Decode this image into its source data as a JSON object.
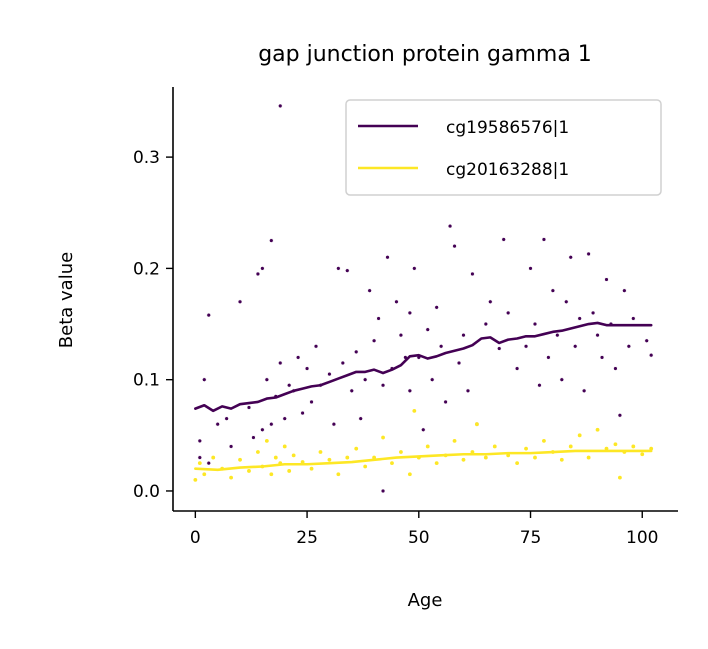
{
  "chart_data": {
    "type": "scatter",
    "title": "gap junction protein gamma 1",
    "xlabel": "Age",
    "ylabel": "Beta value",
    "xlim": [
      -5,
      108
    ],
    "ylim": [
      -0.018,
      0.363
    ],
    "xticks": [
      0,
      25,
      50,
      75,
      100
    ],
    "yticks": [
      0.0,
      0.1,
      0.2,
      0.3
    ],
    "xtick_labels": [
      "0",
      "25",
      "50",
      "75",
      "100"
    ],
    "ytick_labels": [
      "0.0",
      "0.1",
      "0.2",
      "0.3"
    ],
    "grid": false,
    "legend_position": "top-right",
    "series": [
      {
        "name": "cg19586576|1",
        "color": "#440154",
        "trend": {
          "x": [
            0,
            2,
            4,
            6,
            8,
            10,
            12,
            14,
            16,
            18,
            20,
            22,
            24,
            26,
            28,
            30,
            32,
            34,
            36,
            38,
            40,
            42,
            44,
            46,
            48,
            50,
            52,
            54,
            56,
            58,
            60,
            62,
            64,
            66,
            68,
            70,
            72,
            74,
            76,
            78,
            80,
            82,
            84,
            86,
            88,
            90,
            92,
            94,
            96,
            98,
            100,
            102
          ],
          "y": [
            0.074,
            0.077,
            0.072,
            0.076,
            0.074,
            0.078,
            0.079,
            0.08,
            0.083,
            0.084,
            0.087,
            0.09,
            0.092,
            0.094,
            0.095,
            0.098,
            0.101,
            0.104,
            0.107,
            0.107,
            0.109,
            0.106,
            0.109,
            0.113,
            0.121,
            0.122,
            0.119,
            0.121,
            0.124,
            0.126,
            0.128,
            0.131,
            0.137,
            0.138,
            0.133,
            0.136,
            0.137,
            0.139,
            0.139,
            0.141,
            0.143,
            0.144,
            0.146,
            0.148,
            0.15,
            0.151,
            0.149,
            0.149,
            0.149,
            0.149,
            0.149,
            0.149
          ]
        },
        "points": [
          [
            1,
            0.03
          ],
          [
            1,
            0.045
          ],
          [
            2,
            0.1
          ],
          [
            3,
            0.025
          ],
          [
            3,
            0.158
          ],
          [
            5,
            0.06
          ],
          [
            7,
            0.065
          ],
          [
            8,
            0.04
          ],
          [
            10,
            0.17
          ],
          [
            12,
            0.075
          ],
          [
            13,
            0.048
          ],
          [
            14,
            0.195
          ],
          [
            15,
            0.2
          ],
          [
            15,
            0.055
          ],
          [
            16,
            0.1
          ],
          [
            17,
            0.225
          ],
          [
            17,
            0.06
          ],
          [
            18,
            0.085
          ],
          [
            19,
            0.346
          ],
          [
            19,
            0.115
          ],
          [
            20,
            0.065
          ],
          [
            21,
            0.095
          ],
          [
            22,
            0.09
          ],
          [
            23,
            0.12
          ],
          [
            24,
            0.07
          ],
          [
            25,
            0.11
          ],
          [
            26,
            0.08
          ],
          [
            27,
            0.13
          ],
          [
            28,
            0.095
          ],
          [
            30,
            0.105
          ],
          [
            31,
            0.06
          ],
          [
            32,
            0.2
          ],
          [
            33,
            0.115
          ],
          [
            34,
            0.198
          ],
          [
            35,
            0.09
          ],
          [
            36,
            0.125
          ],
          [
            37,
            0.065
          ],
          [
            38,
            0.1
          ],
          [
            39,
            0.18
          ],
          [
            40,
            0.135
          ],
          [
            41,
            0.155
          ],
          [
            42,
            0.095
          ],
          [
            42,
            0.0
          ],
          [
            43,
            0.21
          ],
          [
            44,
            0.11
          ],
          [
            45,
            0.17
          ],
          [
            46,
            0.14
          ],
          [
            47,
            0.12
          ],
          [
            48,
            0.16
          ],
          [
            48,
            0.09
          ],
          [
            49,
            0.2
          ],
          [
            50,
            0.12
          ],
          [
            51,
            0.055
          ],
          [
            52,
            0.145
          ],
          [
            53,
            0.1
          ],
          [
            54,
            0.165
          ],
          [
            55,
            0.13
          ],
          [
            56,
            0.08
          ],
          [
            57,
            0.238
          ],
          [
            58,
            0.22
          ],
          [
            59,
            0.115
          ],
          [
            60,
            0.14
          ],
          [
            61,
            0.09
          ],
          [
            62,
            0.195
          ],
          [
            63,
            0.06
          ],
          [
            65,
            0.15
          ],
          [
            66,
            0.17
          ],
          [
            68,
            0.128
          ],
          [
            69,
            0.226
          ],
          [
            70,
            0.16
          ],
          [
            72,
            0.11
          ],
          [
            74,
            0.13
          ],
          [
            75,
            0.2
          ],
          [
            76,
            0.15
          ],
          [
            77,
            0.095
          ],
          [
            78,
            0.226
          ],
          [
            79,
            0.12
          ],
          [
            80,
            0.18
          ],
          [
            81,
            0.14
          ],
          [
            82,
            0.1
          ],
          [
            83,
            0.17
          ],
          [
            84,
            0.21
          ],
          [
            85,
            0.13
          ],
          [
            86,
            0.155
          ],
          [
            87,
            0.09
          ],
          [
            88,
            0.213
          ],
          [
            89,
            0.16
          ],
          [
            90,
            0.14
          ],
          [
            91,
            0.12
          ],
          [
            92,
            0.19
          ],
          [
            93,
            0.15
          ],
          [
            94,
            0.11
          ],
          [
            95,
            0.068
          ],
          [
            96,
            0.18
          ],
          [
            97,
            0.13
          ],
          [
            98,
            0.155
          ],
          [
            101,
            0.135
          ],
          [
            102,
            0.122
          ]
        ]
      },
      {
        "name": "cg20163288|1",
        "color": "#fde725",
        "trend": {
          "x": [
            0,
            5,
            10,
            15,
            20,
            25,
            30,
            35,
            40,
            45,
            50,
            55,
            60,
            65,
            70,
            75,
            80,
            85,
            90,
            95,
            100,
            102
          ],
          "y": [
            0.02,
            0.019,
            0.021,
            0.022,
            0.024,
            0.024,
            0.025,
            0.026,
            0.028,
            0.03,
            0.031,
            0.032,
            0.033,
            0.033,
            0.034,
            0.034,
            0.035,
            0.036,
            0.036,
            0.036,
            0.036,
            0.036
          ]
        },
        "points": [
          [
            0,
            0.01
          ],
          [
            1,
            0.025
          ],
          [
            2,
            0.015
          ],
          [
            4,
            0.03
          ],
          [
            6,
            0.02
          ],
          [
            8,
            0.012
          ],
          [
            10,
            0.028
          ],
          [
            12,
            0.018
          ],
          [
            14,
            0.035
          ],
          [
            15,
            0.022
          ],
          [
            16,
            0.045
          ],
          [
            17,
            0.015
          ],
          [
            18,
            0.03
          ],
          [
            19,
            0.025
          ],
          [
            20,
            0.04
          ],
          [
            21,
            0.018
          ],
          [
            22,
            0.032
          ],
          [
            24,
            0.026
          ],
          [
            26,
            0.02
          ],
          [
            28,
            0.035
          ],
          [
            30,
            0.028
          ],
          [
            32,
            0.015
          ],
          [
            34,
            0.03
          ],
          [
            36,
            0.038
          ],
          [
            38,
            0.022
          ],
          [
            40,
            0.03
          ],
          [
            42,
            0.048
          ],
          [
            44,
            0.025
          ],
          [
            46,
            0.035
          ],
          [
            48,
            0.015
          ],
          [
            49,
            0.072
          ],
          [
            50,
            0.03
          ],
          [
            52,
            0.04
          ],
          [
            54,
            0.025
          ],
          [
            56,
            0.032
          ],
          [
            58,
            0.045
          ],
          [
            60,
            0.028
          ],
          [
            62,
            0.035
          ],
          [
            63,
            0.06
          ],
          [
            65,
            0.03
          ],
          [
            67,
            0.04
          ],
          [
            70,
            0.032
          ],
          [
            72,
            0.025
          ],
          [
            74,
            0.038
          ],
          [
            76,
            0.03
          ],
          [
            78,
            0.045
          ],
          [
            80,
            0.035
          ],
          [
            82,
            0.028
          ],
          [
            84,
            0.04
          ],
          [
            86,
            0.05
          ],
          [
            88,
            0.03
          ],
          [
            90,
            0.055
          ],
          [
            92,
            0.038
          ],
          [
            94,
            0.042
          ],
          [
            95,
            0.012
          ],
          [
            96,
            0.035
          ],
          [
            98,
            0.04
          ],
          [
            100,
            0.033
          ],
          [
            102,
            0.038
          ]
        ]
      }
    ]
  }
}
